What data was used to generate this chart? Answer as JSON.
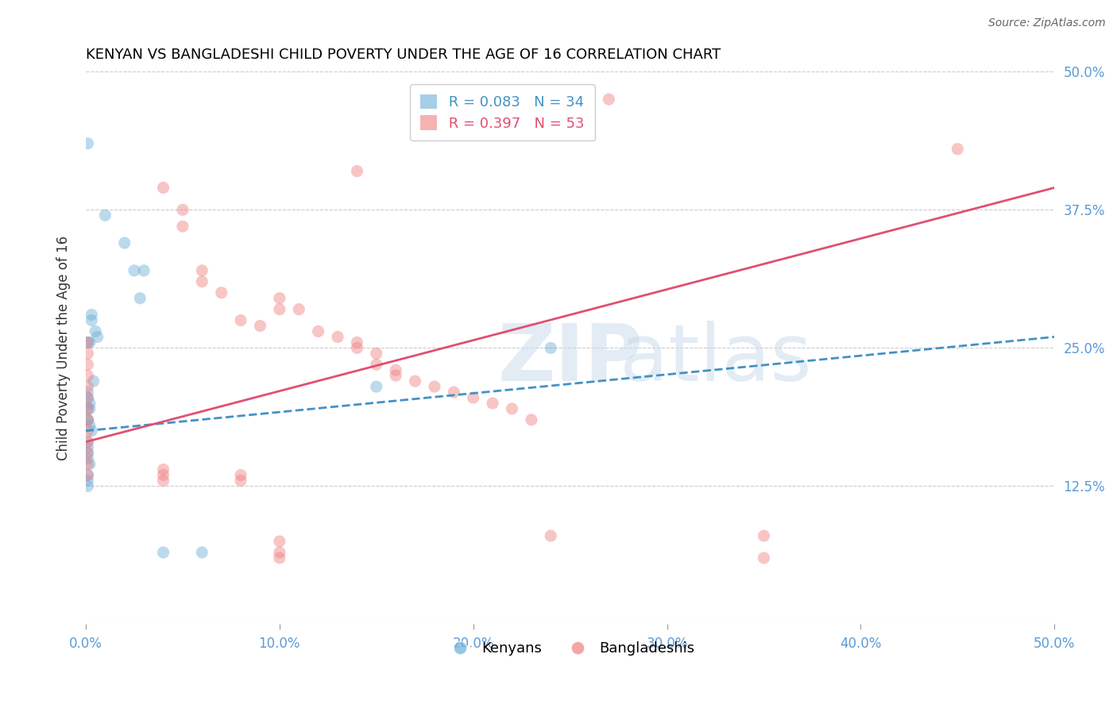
{
  "title": "KENYAN VS BANGLADESHI CHILD POVERTY UNDER THE AGE OF 16 CORRELATION CHART",
  "source": "Source: ZipAtlas.com",
  "xlabel_bottom": "",
  "ylabel": "Child Poverty Under the Age of 16",
  "xlim": [
    0.0,
    0.5
  ],
  "ylim": [
    0.0,
    0.5
  ],
  "xticks": [
    0.0,
    0.1,
    0.2,
    0.3,
    0.4,
    0.5
  ],
  "yticks": [
    0.0,
    0.125,
    0.25,
    0.375,
    0.5
  ],
  "xticklabels": [
    "0.0%",
    "10.0%",
    "20.0%",
    "30.0%",
    "40.0%",
    "50.0%"
  ],
  "yticklabels": [
    "",
    "12.5%",
    "25.0%",
    "37.5%",
    "50.0%"
  ],
  "kenyan_color": "#6baed6",
  "bangladeshi_color": "#f08080",
  "kenyan_line_color": "#4292c6",
  "bangladeshi_line_color": "#e05070",
  "legend_blue_r": "R = 0.083",
  "legend_blue_n": "N = 34",
  "legend_pink_r": "R = 0.397",
  "legend_pink_n": "N = 53",
  "legend_label_kenyan": "Kenyans",
  "legend_label_bangladeshi": "Bangladeshis",
  "background_color": "#ffffff",
  "grid_color": "#cccccc",
  "axis_label_color": "#5b9bd5",
  "title_color": "#000000",
  "kenyan_points": [
    [
      0.001,
      0.435
    ],
    [
      0.01,
      0.37
    ],
    [
      0.02,
      0.345
    ],
    [
      0.025,
      0.32
    ],
    [
      0.03,
      0.32
    ],
    [
      0.028,
      0.295
    ],
    [
      0.003,
      0.28
    ],
    [
      0.003,
      0.275
    ],
    [
      0.005,
      0.265
    ],
    [
      0.006,
      0.26
    ],
    [
      0.001,
      0.255
    ],
    [
      0.002,
      0.255
    ],
    [
      0.004,
      0.22
    ],
    [
      0.001,
      0.21
    ],
    [
      0.001,
      0.205
    ],
    [
      0.002,
      0.2
    ],
    [
      0.001,
      0.195
    ],
    [
      0.002,
      0.195
    ],
    [
      0.001,
      0.185
    ],
    [
      0.001,
      0.185
    ],
    [
      0.002,
      0.18
    ],
    [
      0.003,
      0.175
    ],
    [
      0.001,
      0.165
    ],
    [
      0.001,
      0.16
    ],
    [
      0.001,
      0.155
    ],
    [
      0.001,
      0.15
    ],
    [
      0.002,
      0.145
    ],
    [
      0.001,
      0.135
    ],
    [
      0.001,
      0.13
    ],
    [
      0.001,
      0.125
    ],
    [
      0.15,
      0.215
    ],
    [
      0.24,
      0.25
    ],
    [
      0.04,
      0.065
    ],
    [
      0.06,
      0.065
    ]
  ],
  "bangladeshi_points": [
    [
      0.27,
      0.475
    ],
    [
      0.45,
      0.43
    ],
    [
      0.14,
      0.41
    ],
    [
      0.04,
      0.395
    ],
    [
      0.05,
      0.375
    ],
    [
      0.05,
      0.36
    ],
    [
      0.06,
      0.32
    ],
    [
      0.06,
      0.31
    ],
    [
      0.07,
      0.3
    ],
    [
      0.1,
      0.295
    ],
    [
      0.1,
      0.285
    ],
    [
      0.11,
      0.285
    ],
    [
      0.08,
      0.275
    ],
    [
      0.09,
      0.27
    ],
    [
      0.12,
      0.265
    ],
    [
      0.13,
      0.26
    ],
    [
      0.14,
      0.255
    ],
    [
      0.14,
      0.25
    ],
    [
      0.15,
      0.245
    ],
    [
      0.15,
      0.235
    ],
    [
      0.16,
      0.23
    ],
    [
      0.16,
      0.225
    ],
    [
      0.17,
      0.22
    ],
    [
      0.18,
      0.215
    ],
    [
      0.19,
      0.21
    ],
    [
      0.2,
      0.205
    ],
    [
      0.21,
      0.2
    ],
    [
      0.22,
      0.195
    ],
    [
      0.23,
      0.185
    ],
    [
      0.001,
      0.255
    ],
    [
      0.001,
      0.245
    ],
    [
      0.001,
      0.235
    ],
    [
      0.001,
      0.225
    ],
    [
      0.001,
      0.215
    ],
    [
      0.001,
      0.205
    ],
    [
      0.001,
      0.195
    ],
    [
      0.001,
      0.185
    ],
    [
      0.001,
      0.175
    ],
    [
      0.001,
      0.165
    ],
    [
      0.001,
      0.155
    ],
    [
      0.001,
      0.145
    ],
    [
      0.001,
      0.135
    ],
    [
      0.04,
      0.14
    ],
    [
      0.04,
      0.135
    ],
    [
      0.04,
      0.13
    ],
    [
      0.08,
      0.135
    ],
    [
      0.08,
      0.13
    ],
    [
      0.24,
      0.08
    ],
    [
      0.35,
      0.08
    ],
    [
      0.1,
      0.075
    ],
    [
      0.1,
      0.065
    ],
    [
      0.1,
      0.06
    ],
    [
      0.35,
      0.06
    ]
  ],
  "kenyan_trend": {
    "x_start": 0.0,
    "y_start": 0.175,
    "x_end": 0.5,
    "y_end": 0.26
  },
  "bangladeshi_trend": {
    "x_start": 0.0,
    "y_start": 0.165,
    "x_end": 0.5,
    "y_end": 0.395
  },
  "watermark": "ZIPatlas",
  "marker_size": 120,
  "marker_alpha": 0.45,
  "line_width": 2.0
}
